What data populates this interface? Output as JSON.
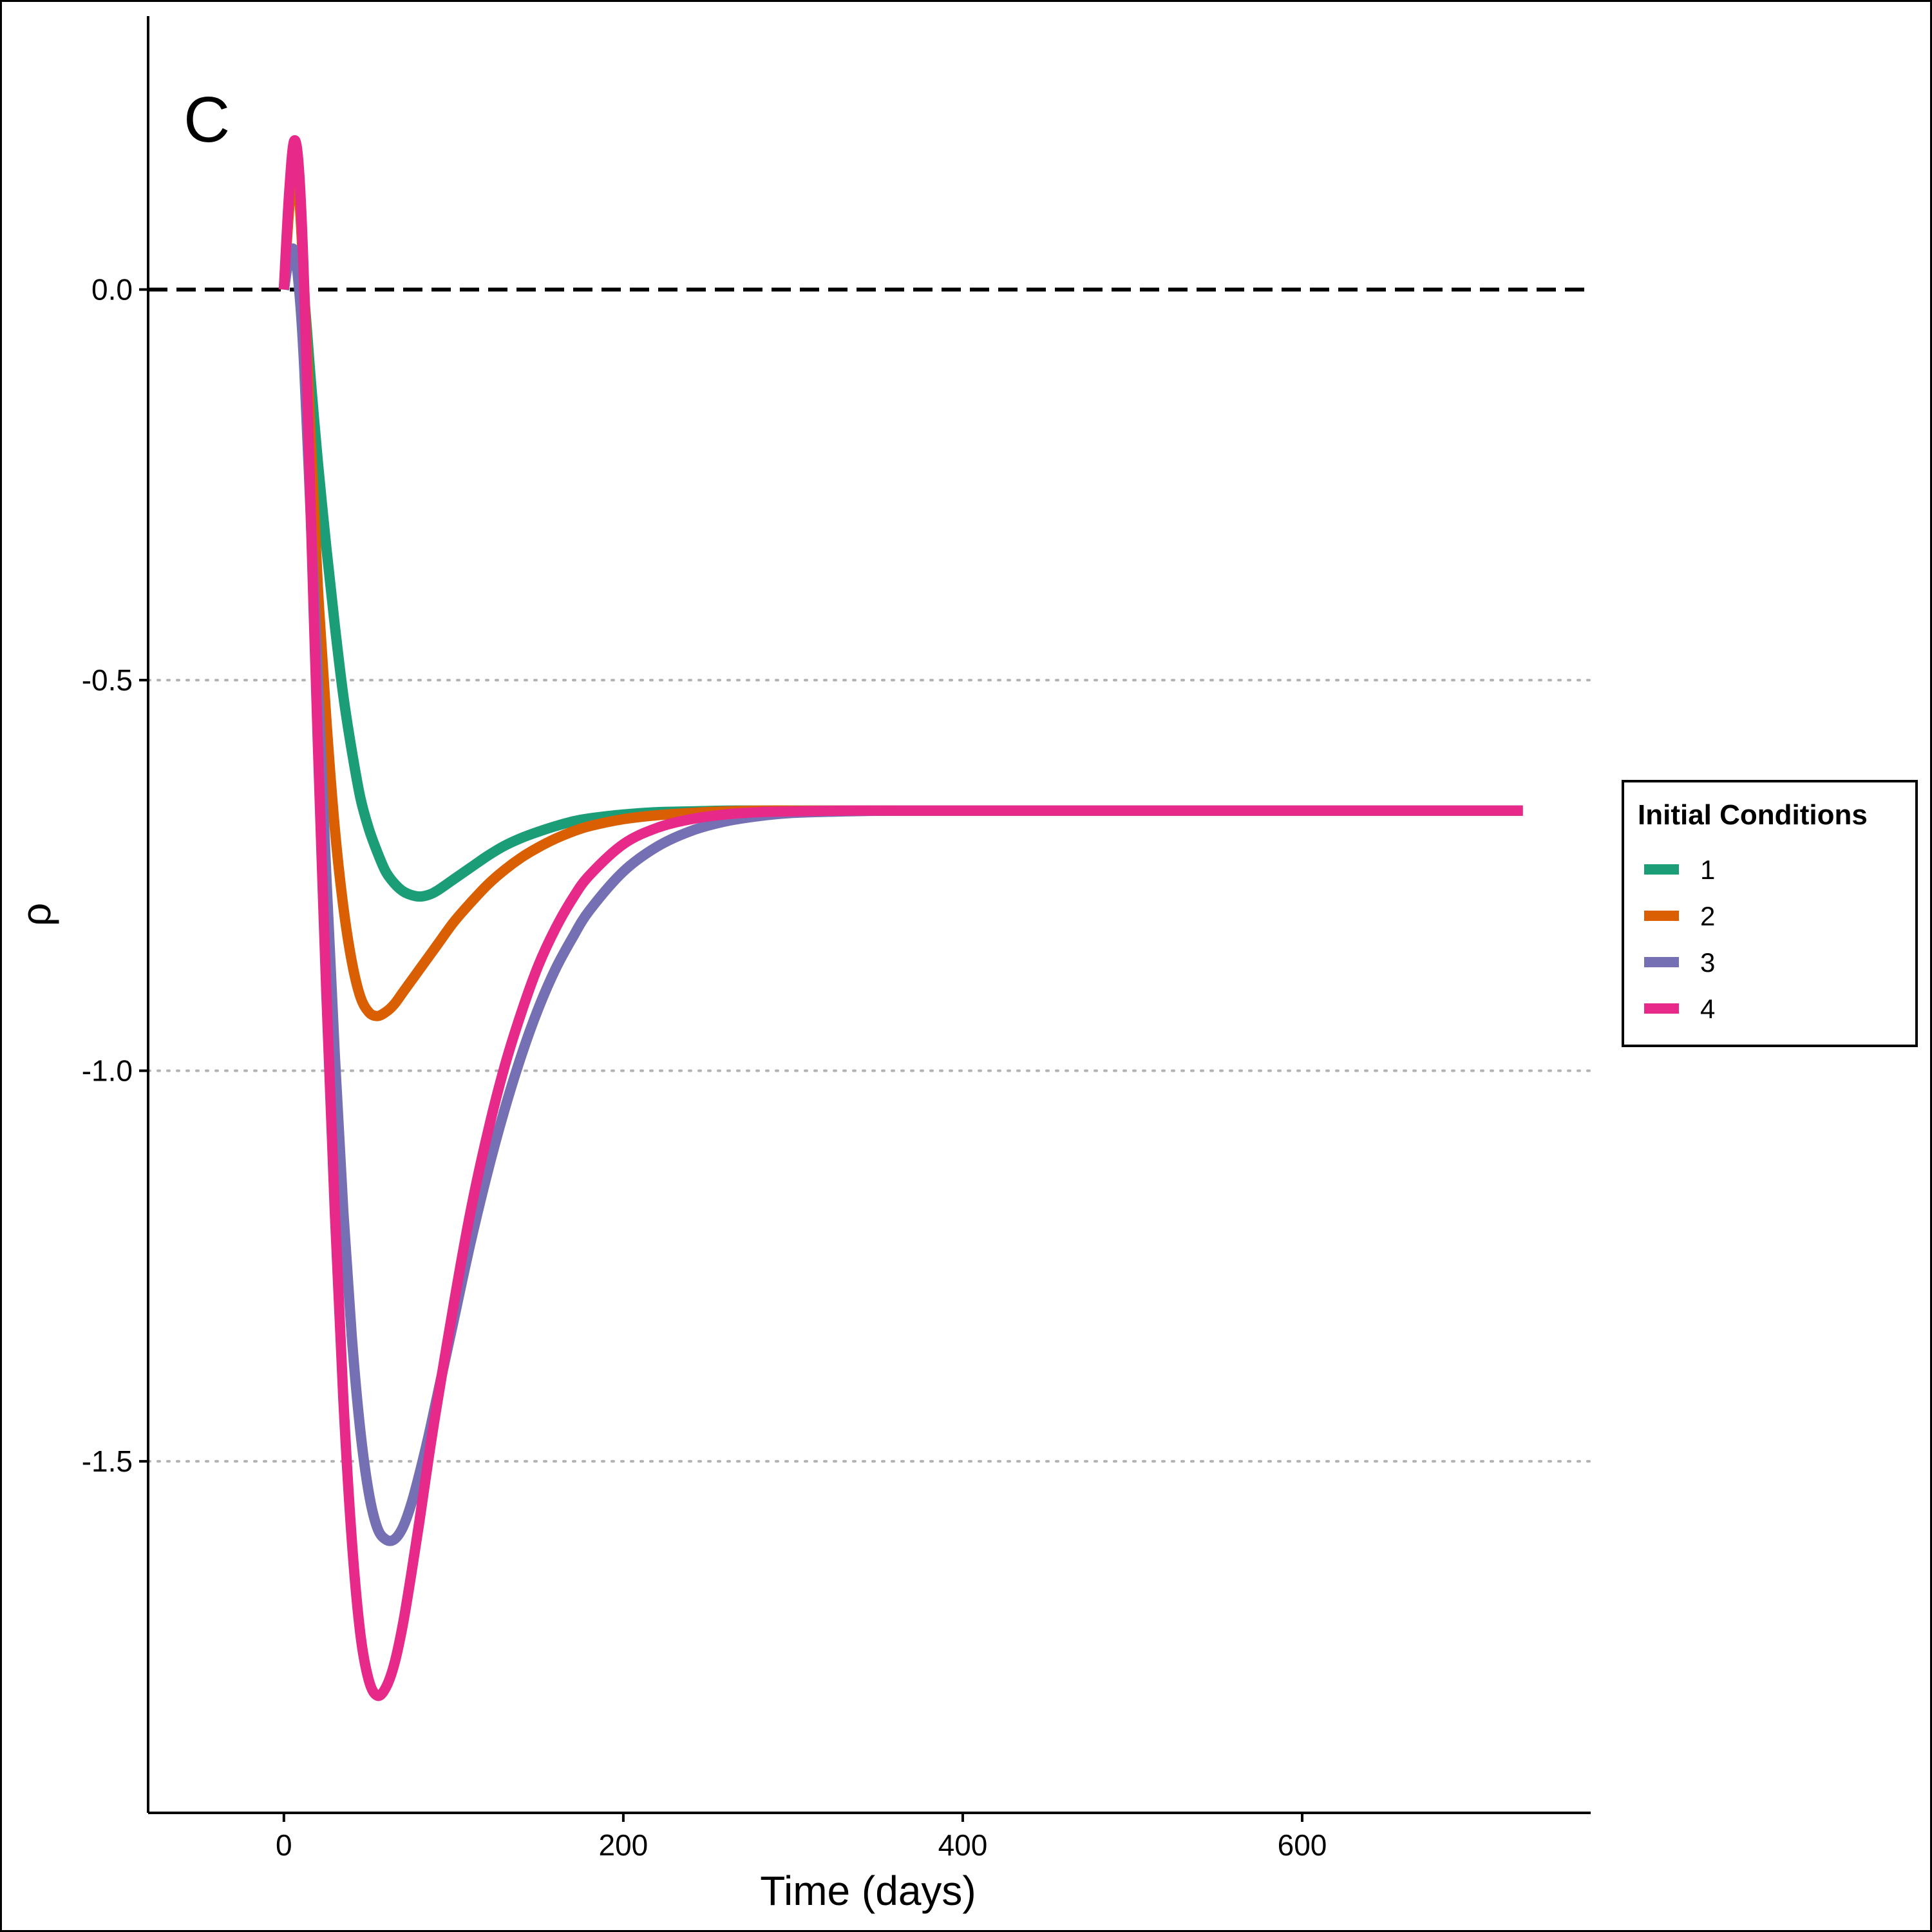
{
  "chart_data": {
    "type": "line",
    "panel_label": "C",
    "xlabel": "Time (days)",
    "ylabel": "ρ",
    "xlim": [
      -80,
      770
    ],
    "ylim": [
      -1.95,
      0.35
    ],
    "x_ticks": [
      0,
      200,
      400,
      600
    ],
    "x_tick_labels": [
      "0",
      "200",
      "400",
      "600"
    ],
    "y_ticks": [
      0.0,
      -0.5,
      -1.0,
      -1.5
    ],
    "y_tick_labels": [
      "0.0",
      "-0.5",
      "-1.0",
      "-1.5"
    ],
    "reference_line": {
      "y": 0.0,
      "style": "dashed"
    },
    "grid": {
      "major_y": "dotted",
      "x": false
    },
    "legend": {
      "title": "Initial Conditions",
      "placement": "right",
      "entries": [
        "1",
        "2",
        "3",
        "4"
      ]
    },
    "series": [
      {
        "name": "1",
        "color": "#1b9e77",
        "x": [
          0,
          3,
          6,
          9,
          12,
          16,
          20,
          25,
          30,
          35,
          40,
          45,
          50,
          55,
          60,
          65,
          70,
          75,
          80,
          85,
          90,
          100,
          110,
          120,
          130,
          140,
          150,
          160,
          170,
          180,
          200,
          220,
          240,
          260,
          280,
          300,
          330,
          360,
          400,
          450,
          500,
          550,
          600,
          650,
          700,
          730
        ],
        "y": [
          0.0,
          0.04,
          0.05,
          0.04,
          -0.01,
          -0.12,
          -0.22,
          -0.33,
          -0.43,
          -0.52,
          -0.59,
          -0.65,
          -0.69,
          -0.72,
          -0.745,
          -0.76,
          -0.77,
          -0.775,
          -0.777,
          -0.775,
          -0.77,
          -0.755,
          -0.74,
          -0.725,
          -0.712,
          -0.702,
          -0.694,
          -0.687,
          -0.681,
          -0.677,
          -0.672,
          -0.669,
          -0.668,
          -0.667,
          -0.667,
          -0.667,
          -0.667,
          -0.667,
          -0.667,
          -0.667,
          -0.667,
          -0.667,
          -0.667,
          -0.667,
          -0.667,
          -0.667
        ]
      },
      {
        "name": "2",
        "color": "#d95f02",
        "x": [
          0,
          3,
          6,
          9,
          12,
          16,
          20,
          25,
          30,
          35,
          40,
          45,
          50,
          55,
          60,
          65,
          70,
          75,
          80,
          90,
          100,
          110,
          120,
          130,
          140,
          150,
          160,
          170,
          180,
          200,
          220,
          240,
          260,
          280,
          300,
          330,
          360,
          400,
          450,
          500,
          550,
          600,
          650,
          700,
          730
        ],
        "y": [
          0.0,
          0.1,
          0.16,
          0.12,
          0.0,
          -0.2,
          -0.38,
          -0.55,
          -0.69,
          -0.79,
          -0.86,
          -0.905,
          -0.925,
          -0.93,
          -0.925,
          -0.915,
          -0.9,
          -0.885,
          -0.87,
          -0.84,
          -0.81,
          -0.785,
          -0.762,
          -0.743,
          -0.727,
          -0.714,
          -0.703,
          -0.694,
          -0.687,
          -0.678,
          -0.673,
          -0.67,
          -0.668,
          -0.667,
          -0.667,
          -0.667,
          -0.667,
          -0.667,
          -0.667,
          -0.667,
          -0.667,
          -0.667,
          -0.667,
          -0.667,
          -0.667
        ]
      },
      {
        "name": "3",
        "color": "#7570b3",
        "x": [
          0,
          3,
          6,
          9,
          12,
          16,
          20,
          25,
          30,
          35,
          40,
          45,
          50,
          55,
          60,
          65,
          70,
          75,
          80,
          85,
          90,
          100,
          110,
          120,
          130,
          140,
          150,
          160,
          170,
          180,
          200,
          220,
          240,
          260,
          280,
          300,
          330,
          360,
          400,
          450,
          500,
          550,
          600,
          650,
          700,
          730
        ],
        "y": [
          0.0,
          0.04,
          0.05,
          0.0,
          -0.1,
          -0.3,
          -0.5,
          -0.75,
          -0.98,
          -1.18,
          -1.34,
          -1.46,
          -1.54,
          -1.585,
          -1.6,
          -1.6,
          -1.585,
          -1.555,
          -1.515,
          -1.47,
          -1.42,
          -1.32,
          -1.22,
          -1.13,
          -1.05,
          -0.98,
          -0.92,
          -0.87,
          -0.83,
          -0.795,
          -0.745,
          -0.713,
          -0.693,
          -0.681,
          -0.674,
          -0.67,
          -0.668,
          -0.667,
          -0.667,
          -0.667,
          -0.667,
          -0.667,
          -0.667,
          -0.667,
          -0.667,
          -0.667
        ]
      },
      {
        "name": "4",
        "color": "#e7298a",
        "x": [
          0,
          3,
          6,
          9,
          12,
          16,
          20,
          25,
          30,
          35,
          40,
          45,
          50,
          55,
          60,
          65,
          70,
          75,
          80,
          85,
          90,
          100,
          110,
          120,
          130,
          140,
          150,
          160,
          170,
          180,
          200,
          220,
          240,
          260,
          280,
          300,
          330,
          360,
          400,
          450,
          500,
          550,
          600,
          650,
          700,
          730
        ],
        "y": [
          0.0,
          0.12,
          0.19,
          0.15,
          0.0,
          -0.3,
          -0.58,
          -0.9,
          -1.18,
          -1.42,
          -1.6,
          -1.72,
          -1.78,
          -1.8,
          -1.79,
          -1.76,
          -1.71,
          -1.645,
          -1.575,
          -1.5,
          -1.43,
          -1.3,
          -1.18,
          -1.08,
          -0.995,
          -0.925,
          -0.865,
          -0.818,
          -0.78,
          -0.75,
          -0.71,
          -0.689,
          -0.678,
          -0.672,
          -0.669,
          -0.668,
          -0.667,
          -0.667,
          -0.667,
          -0.667,
          -0.667,
          -0.667,
          -0.667,
          -0.667,
          -0.667,
          -0.667
        ]
      }
    ]
  }
}
